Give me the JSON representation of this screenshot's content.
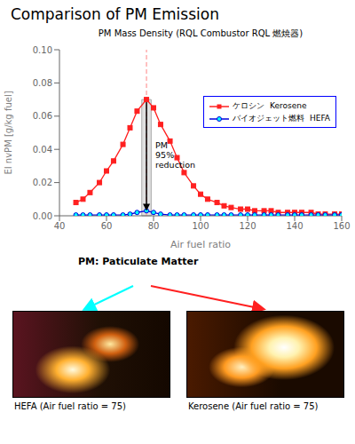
{
  "chart_data": {
    "type": "line",
    "title": "Comparison of PM Emission",
    "subtitle": "PM Mass Density (RQL Combustor RQL 燃焼器)",
    "x_label": "Air fuel ratio",
    "y_label": "EI nvPM [g/kg fuel]",
    "x": [
      47,
      50,
      53,
      57,
      60,
      63,
      67,
      70,
      73,
      77,
      80,
      83,
      87,
      90,
      93,
      97,
      100,
      103,
      107,
      110,
      113,
      117,
      120,
      123,
      127,
      130,
      133,
      137,
      140,
      143,
      147,
      150,
      153,
      157,
      160
    ],
    "series": [
      {
        "name": "ケロシン  Kerosene",
        "color": "#ff2020",
        "marker": "square",
        "values": [
          0.008,
          0.01,
          0.014,
          0.02,
          0.027,
          0.033,
          0.043,
          0.053,
          0.063,
          0.07,
          0.065,
          0.055,
          0.045,
          0.035,
          0.026,
          0.018,
          0.013,
          0.01,
          0.008,
          0.006,
          0.005,
          0.004,
          0.004,
          0.003,
          0.003,
          0.003,
          0.002,
          0.002,
          0.002,
          0.002,
          0.002,
          0.001,
          0.001,
          0.001,
          0.001
        ]
      },
      {
        "name": "バイオジェット燃料  HEFA",
        "color": "#0000dd",
        "marker": "circle",
        "values": [
          0.0005,
          0.0005,
          0.0005,
          0.0005,
          0.0005,
          0.0005,
          0.0005,
          0.001,
          0.002,
          0.003,
          0.002,
          0.001,
          0.0005,
          0.0005,
          0.0005,
          0.0005,
          0.0005,
          0.0005,
          0.0005,
          0.0005,
          0.0005,
          0.0005,
          0.0005,
          0.0005,
          0.0005,
          0.0005,
          0.0005,
          0.0005,
          0.0005,
          0.0005,
          0.0005,
          0.0005,
          0.0005,
          0.0005,
          0.0005
        ]
      }
    ],
    "xlim": [
      40,
      160
    ],
    "xticks": [
      40,
      60,
      80,
      100,
      120,
      140,
      160
    ],
    "ylim": [
      0,
      0.1
    ],
    "yticks": [
      {
        "value": 0,
        "label": "0.00"
      },
      0.02,
      0.04,
      0.06,
      0.08,
      {
        "value": 0.1,
        "label": "0.10"
      }
    ],
    "legend": "upper right",
    "grid": false,
    "annotations": [
      {
        "text": "PM\n95%\nreduction",
        "x": 77,
        "y_from": 0.07,
        "y_to": 0.003
      }
    ],
    "notes": [
      "PM: Paticulate Matter"
    ],
    "image_labels": [
      "HEFA (Air fuel ratio = 75)",
      "Kerosene (Air fuel ratio = 75)"
    ]
  }
}
